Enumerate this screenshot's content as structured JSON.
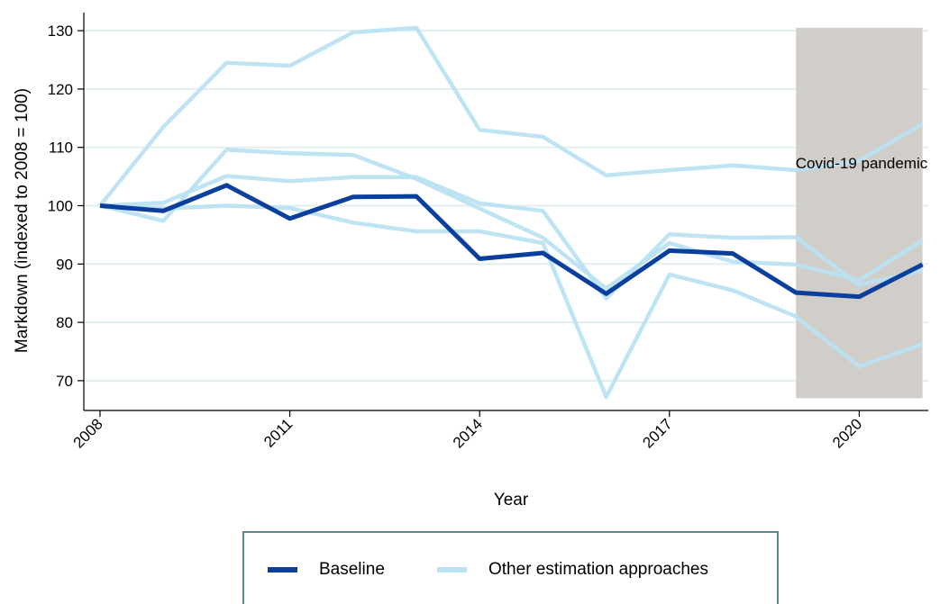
{
  "chart_data": {
    "type": "line",
    "xlabel": "Year",
    "ylabel": "Markdown (indexed to 2008 = 100)",
    "xlim": [
      2008,
      2021
    ],
    "ylim": [
      65,
      132
    ],
    "x_ticks": [
      "2008",
      "2011",
      "2014",
      "2017",
      "2020"
    ],
    "y_ticks": [
      "70",
      "80",
      "90",
      "100",
      "110",
      "120",
      "130"
    ],
    "grid": "horizontal",
    "legend_position": "bottom",
    "x": [
      2008,
      2009,
      2010,
      2011,
      2012,
      2013,
      2014,
      2015,
      2016,
      2017,
      2018,
      2019,
      2020,
      2021
    ],
    "shaded_region": {
      "x": [
        2019,
        2021
      ],
      "y": [
        67,
        130.5
      ],
      "label": "Covid-19 pandemic"
    },
    "series": [
      {
        "legend": "Other estimation approaches",
        "color": "#b9e2f3",
        "values": [
          100,
          113.5,
          124.5,
          124,
          129.7,
          130.5,
          113,
          111.8,
          105.2,
          106.1,
          106.9,
          106.1,
          107.7,
          114
        ]
      },
      {
        "legend": "Other estimation approaches",
        "color": "#b9e2f3",
        "values": [
          100,
          97.4,
          109.6,
          109,
          108.7,
          104.6,
          99.5,
          94.5,
          85.8,
          93.6,
          90.4,
          89.9,
          87.2,
          94
        ]
      },
      {
        "legend": "Other estimation approaches",
        "color": "#b9e2f3",
        "values": [
          100,
          100.5,
          105.1,
          104.2,
          104.9,
          104.9,
          100.4,
          99.1,
          84.1,
          95.1,
          94.5,
          94.6,
          86.4,
          88.9
        ]
      },
      {
        "legend": "Other estimation approaches",
        "color": "#b9e2f3",
        "values": [
          100,
          99.5,
          100,
          99.6,
          97.1,
          95.6,
          95.6,
          93.6,
          67.2,
          88.2,
          85.5,
          81,
          72.4,
          76.3
        ]
      },
      {
        "legend": "Baseline",
        "color": "#0b3f9e",
        "values": [
          100,
          99.1,
          103.5,
          97.8,
          101.5,
          101.6,
          90.9,
          91.9,
          84.9,
          92.3,
          91.8,
          85.1,
          84.4,
          89.9
        ]
      }
    ],
    "legend": [
      {
        "label": "Baseline",
        "color": "#0b3f9e"
      },
      {
        "label": "Other estimation approaches",
        "color": "#b9e2f3"
      }
    ]
  }
}
